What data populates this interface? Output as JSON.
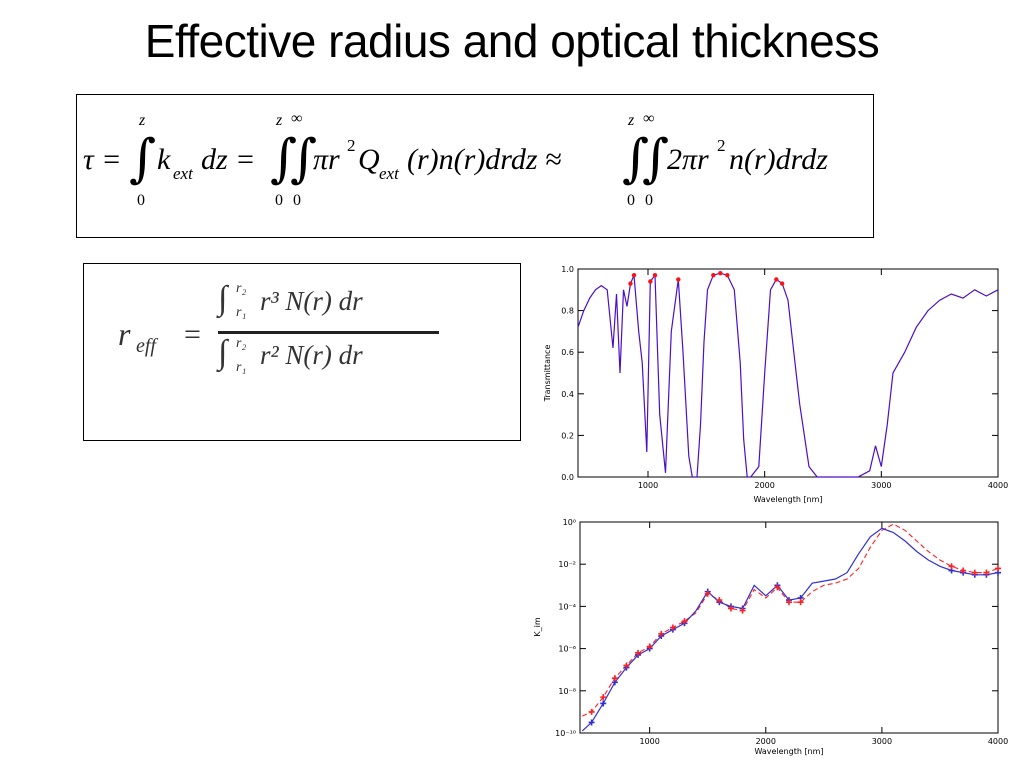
{
  "slide": {
    "title": "Effective radius and optical thickness"
  },
  "equation_tau": {
    "lhs": "τ =",
    "int_upper_1": "z",
    "int_lower_1": "0",
    "integrand_1": "k",
    "integrand_1_sub": "ext",
    "integrand_1_tail": "dz =",
    "int_upper_2a": "z",
    "int_upper_2b": "∞",
    "int_lower_2a": "0",
    "int_lower_2b": "0",
    "integrand_2a": "πr",
    "integrand_2a_sup": "2",
    "integrand_2b": "Q",
    "integrand_2b_sub": "ext",
    "integrand_2c": "(r)n(r)drdz ≈",
    "int_upper_3a": "z",
    "int_upper_3b": "∞",
    "int_lower_3a": "0",
    "int_lower_3b": "0",
    "integrand_3a": "2πr",
    "integrand_3a_sup": "2",
    "integrand_3b": "n(r)drdz"
  },
  "equation_reff": {
    "lhs": "r",
    "lhs_sub": "eff",
    "equals": "=",
    "num_int_upper": "r₂",
    "num_int_lower": "r₁",
    "num_body": "r³  N(r)  dr",
    "den_int_upper": "r₂",
    "den_int_lower": "r₁",
    "den_body": "r²  N(r)  dr"
  },
  "chart_data": [
    {
      "type": "line",
      "title": "",
      "xlabel": "Wavelength [nm]",
      "ylabel": "Transmittance",
      "xlim": [
        400,
        4000
      ],
      "ylim": [
        0.0,
        1.0
      ],
      "x_ticks": [
        "1000",
        "2000",
        "3000",
        "4000"
      ],
      "y_ticks": [
        "0.0",
        "0.2",
        "0.4",
        "0.6",
        "0.8",
        "1.0"
      ],
      "colors": {
        "series": "#4b0fc8",
        "highlight": "#ff1010"
      },
      "series": [
        {
          "x": [
            400,
            450,
            500,
            550,
            600,
            650,
            700,
            730,
            760,
            790,
            820,
            850,
            880,
            920,
            950,
            990,
            1020,
            1060,
            1100,
            1150,
            1200,
            1260,
            1300,
            1350,
            1380,
            1420,
            1450,
            1480,
            1510,
            1560,
            1620,
            1680,
            1740,
            1790,
            1820,
            1850,
            1880,
            1950,
            2000,
            2050,
            2100,
            2150,
            2200,
            2250,
            2300,
            2380,
            2450,
            2500,
            2600,
            2700,
            2800,
            2900,
            2950,
            3000,
            3050,
            3100,
            3200,
            3300,
            3400,
            3500,
            3600,
            3700,
            3800,
            3900,
            4000
          ],
          "y": [
            0.72,
            0.8,
            0.86,
            0.9,
            0.92,
            0.9,
            0.62,
            0.88,
            0.5,
            0.9,
            0.82,
            0.93,
            0.97,
            0.7,
            0.55,
            0.12,
            0.94,
            0.97,
            0.3,
            0.02,
            0.7,
            0.95,
            0.6,
            0.1,
            0.0,
            0.0,
            0.25,
            0.65,
            0.9,
            0.97,
            0.98,
            0.97,
            0.9,
            0.55,
            0.18,
            0.0,
            0.0,
            0.05,
            0.5,
            0.9,
            0.95,
            0.93,
            0.85,
            0.6,
            0.35,
            0.05,
            0.0,
            0.0,
            0.0,
            0.0,
            0.0,
            0.03,
            0.15,
            0.05,
            0.25,
            0.5,
            0.6,
            0.72,
            0.8,
            0.85,
            0.88,
            0.86,
            0.9,
            0.87,
            0.9
          ]
        }
      ]
    },
    {
      "type": "line",
      "title": "",
      "xlabel": "Wavelength [nm]",
      "ylabel": "K_im",
      "xlim": [
        400,
        4000
      ],
      "ylim": [
        -10,
        0
      ],
      "y_scale": "log",
      "x_ticks": [
        "1000",
        "2000",
        "3000",
        "4000"
      ],
      "y_ticks": [
        "10⁰",
        "10⁻²",
        "10⁻⁴",
        "10⁻⁶",
        "10⁻⁸",
        "10⁻¹⁰"
      ],
      "colors": {
        "solid": "#3030d0",
        "dashed": "#ff2020"
      },
      "series": [
        {
          "style": "solid",
          "x": [
            420,
            500,
            600,
            700,
            800,
            900,
            1000,
            1100,
            1200,
            1300,
            1400,
            1500,
            1600,
            1700,
            1800,
            1900,
            2000,
            2100,
            2200,
            2300,
            2400,
            2500,
            2600,
            2700,
            2800,
            2900,
            3000,
            3100,
            3200,
            3300,
            3400,
            3500,
            3600,
            3700,
            3800,
            3900,
            4000
          ],
          "y": [
            -9.9,
            -9.5,
            -8.6,
            -7.6,
            -6.9,
            -6.3,
            -6.0,
            -5.4,
            -5.1,
            -4.8,
            -4.2,
            -3.3,
            -3.8,
            -4.0,
            -4.1,
            -3.0,
            -3.5,
            -3.0,
            -3.7,
            -3.6,
            -2.9,
            -2.8,
            -2.7,
            -2.4,
            -1.5,
            -0.7,
            -0.3,
            -0.5,
            -0.9,
            -1.4,
            -1.8,
            -2.1,
            -2.3,
            -2.4,
            -2.5,
            -2.5,
            -2.4
          ]
        },
        {
          "style": "dashed",
          "x": [
            420,
            500,
            600,
            700,
            800,
            900,
            1000,
            1100,
            1200,
            1300,
            1400,
            1500,
            1600,
            1700,
            1800,
            1900,
            2000,
            2100,
            2200,
            2300,
            2400,
            2500,
            2600,
            2700,
            2800,
            2900,
            3000,
            3100,
            3200,
            3300,
            3400,
            3500,
            3600,
            3700,
            3800,
            3900,
            4000
          ],
          "y": [
            -9.2,
            -9.0,
            -8.3,
            -7.4,
            -6.8,
            -6.2,
            -5.9,
            -5.3,
            -5.0,
            -4.7,
            -4.3,
            -3.4,
            -3.7,
            -4.1,
            -4.2,
            -3.2,
            -3.6,
            -3.1,
            -3.8,
            -3.8,
            -3.3,
            -3.0,
            -2.9,
            -2.7,
            -2.2,
            -1.2,
            -0.4,
            -0.1,
            -0.4,
            -0.9,
            -1.4,
            -1.8,
            -2.1,
            -2.3,
            -2.4,
            -2.4,
            -2.2
          ]
        }
      ]
    }
  ]
}
